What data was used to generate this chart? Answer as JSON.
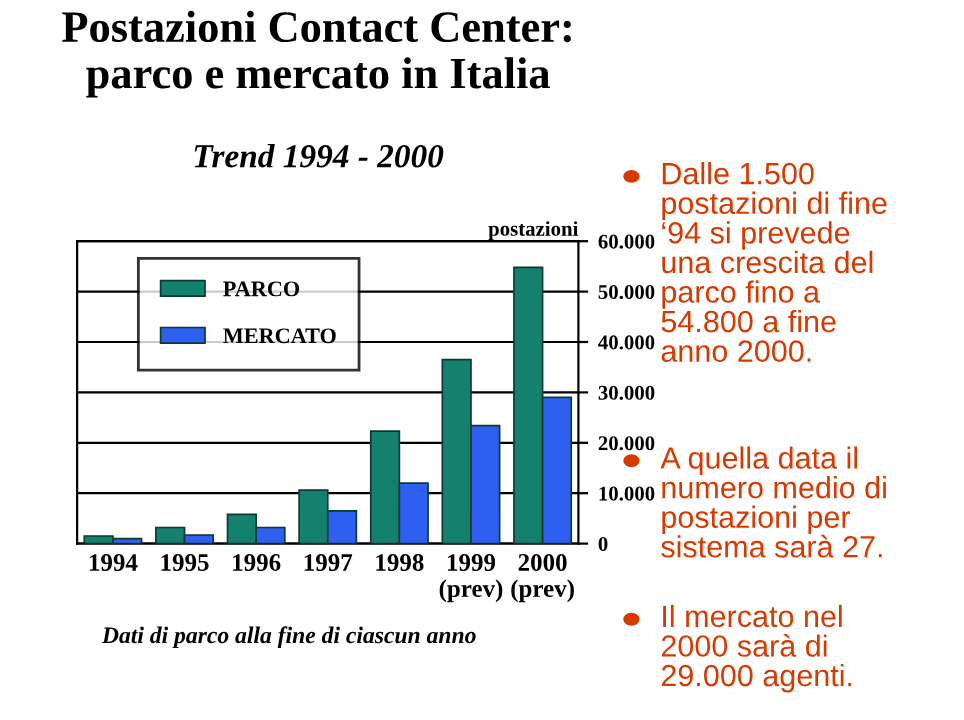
{
  "chart_data": {
    "type": "bar",
    "title": "Postazioni Contact Center:\nparco e mercato in Italia",
    "subtitle": "Trend 1994 - 2000",
    "ylabel": "postazioni",
    "categories": [
      "1994",
      "1995",
      "1996",
      "1997",
      "1998",
      "1999\n(prev)",
      "2000\n(prev)"
    ],
    "series": [
      {
        "name": "PARCO",
        "color": "#14806e",
        "values": [
          1500,
          3200,
          5800,
          10600,
          22300,
          36500,
          54800
        ]
      },
      {
        "name": "MERCATO",
        "color": "#2f5ff0",
        "values": [
          1000,
          1700,
          3200,
          6500,
          12000,
          23400,
          29000
        ]
      }
    ],
    "ylim": [
      0,
      60000
    ],
    "yticks": [
      {
        "value": 0,
        "label": "0"
      },
      {
        "value": 10000,
        "label": "10.000"
      },
      {
        "value": 20000,
        "label": "20.000"
      },
      {
        "value": 30000,
        "label": "30.000"
      },
      {
        "value": 40000,
        "label": "40.000"
      },
      {
        "value": 50000,
        "label": "50.000"
      },
      {
        "value": 60000,
        "label": "60.000"
      }
    ],
    "grid": "y",
    "legend": "top left",
    "annotations": [
      "Dati di parco alla fine di ciascun anno",
      "Dalle 1.500\npostazioni di fine\n‘94 si prevede\nuna crescita del\nparco fino a\n54.800 a fine\nanno 2000.",
      "A quella data il\nnumero medio di\npostazioni per\nsistema sarà 27.",
      "Il mercato nel\n2000 sarà di\n29.000 agenti."
    ]
  }
}
